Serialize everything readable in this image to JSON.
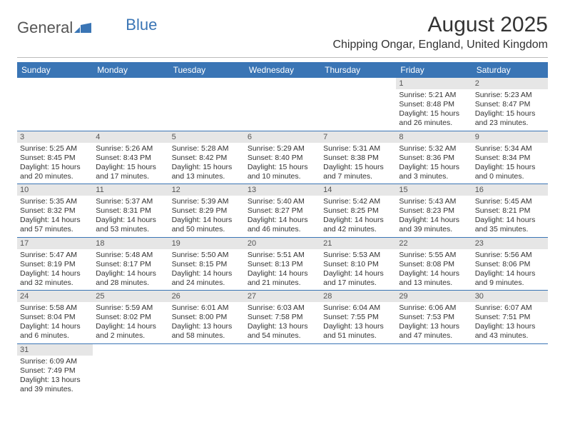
{
  "logo": {
    "general": "General",
    "blue": "Blue"
  },
  "title": "August 2025",
  "subtitle": "Chipping Ongar, England, United Kingdom",
  "dayHeaders": [
    "Sunday",
    "Monday",
    "Tuesday",
    "Wednesday",
    "Thursday",
    "Friday",
    "Saturday"
  ],
  "colors": {
    "headerBg": "#3a75b5",
    "headerText": "#ffffff",
    "dayNumBg": "#e6e6e6",
    "rowBorder": "#3a75b5",
    "text": "#333333"
  },
  "weeks": [
    [
      null,
      null,
      null,
      null,
      null,
      {
        "n": "1",
        "sunrise": "5:21 AM",
        "sunset": "8:48 PM",
        "daylight": "15 hours and 26 minutes."
      },
      {
        "n": "2",
        "sunrise": "5:23 AM",
        "sunset": "8:47 PM",
        "daylight": "15 hours and 23 minutes."
      }
    ],
    [
      {
        "n": "3",
        "sunrise": "5:25 AM",
        "sunset": "8:45 PM",
        "daylight": "15 hours and 20 minutes."
      },
      {
        "n": "4",
        "sunrise": "5:26 AM",
        "sunset": "8:43 PM",
        "daylight": "15 hours and 17 minutes."
      },
      {
        "n": "5",
        "sunrise": "5:28 AM",
        "sunset": "8:42 PM",
        "daylight": "15 hours and 13 minutes."
      },
      {
        "n": "6",
        "sunrise": "5:29 AM",
        "sunset": "8:40 PM",
        "daylight": "15 hours and 10 minutes."
      },
      {
        "n": "7",
        "sunrise": "5:31 AM",
        "sunset": "8:38 PM",
        "daylight": "15 hours and 7 minutes."
      },
      {
        "n": "8",
        "sunrise": "5:32 AM",
        "sunset": "8:36 PM",
        "daylight": "15 hours and 3 minutes."
      },
      {
        "n": "9",
        "sunrise": "5:34 AM",
        "sunset": "8:34 PM",
        "daylight": "15 hours and 0 minutes."
      }
    ],
    [
      {
        "n": "10",
        "sunrise": "5:35 AM",
        "sunset": "8:32 PM",
        "daylight": "14 hours and 57 minutes."
      },
      {
        "n": "11",
        "sunrise": "5:37 AM",
        "sunset": "8:31 PM",
        "daylight": "14 hours and 53 minutes."
      },
      {
        "n": "12",
        "sunrise": "5:39 AM",
        "sunset": "8:29 PM",
        "daylight": "14 hours and 50 minutes."
      },
      {
        "n": "13",
        "sunrise": "5:40 AM",
        "sunset": "8:27 PM",
        "daylight": "14 hours and 46 minutes."
      },
      {
        "n": "14",
        "sunrise": "5:42 AM",
        "sunset": "8:25 PM",
        "daylight": "14 hours and 42 minutes."
      },
      {
        "n": "15",
        "sunrise": "5:43 AM",
        "sunset": "8:23 PM",
        "daylight": "14 hours and 39 minutes."
      },
      {
        "n": "16",
        "sunrise": "5:45 AM",
        "sunset": "8:21 PM",
        "daylight": "14 hours and 35 minutes."
      }
    ],
    [
      {
        "n": "17",
        "sunrise": "5:47 AM",
        "sunset": "8:19 PM",
        "daylight": "14 hours and 32 minutes."
      },
      {
        "n": "18",
        "sunrise": "5:48 AM",
        "sunset": "8:17 PM",
        "daylight": "14 hours and 28 minutes."
      },
      {
        "n": "19",
        "sunrise": "5:50 AM",
        "sunset": "8:15 PM",
        "daylight": "14 hours and 24 minutes."
      },
      {
        "n": "20",
        "sunrise": "5:51 AM",
        "sunset": "8:13 PM",
        "daylight": "14 hours and 21 minutes."
      },
      {
        "n": "21",
        "sunrise": "5:53 AM",
        "sunset": "8:10 PM",
        "daylight": "14 hours and 17 minutes."
      },
      {
        "n": "22",
        "sunrise": "5:55 AM",
        "sunset": "8:08 PM",
        "daylight": "14 hours and 13 minutes."
      },
      {
        "n": "23",
        "sunrise": "5:56 AM",
        "sunset": "8:06 PM",
        "daylight": "14 hours and 9 minutes."
      }
    ],
    [
      {
        "n": "24",
        "sunrise": "5:58 AM",
        "sunset": "8:04 PM",
        "daylight": "14 hours and 6 minutes."
      },
      {
        "n": "25",
        "sunrise": "5:59 AM",
        "sunset": "8:02 PM",
        "daylight": "14 hours and 2 minutes."
      },
      {
        "n": "26",
        "sunrise": "6:01 AM",
        "sunset": "8:00 PM",
        "daylight": "13 hours and 58 minutes."
      },
      {
        "n": "27",
        "sunrise": "6:03 AM",
        "sunset": "7:58 PM",
        "daylight": "13 hours and 54 minutes."
      },
      {
        "n": "28",
        "sunrise": "6:04 AM",
        "sunset": "7:55 PM",
        "daylight": "13 hours and 51 minutes."
      },
      {
        "n": "29",
        "sunrise": "6:06 AM",
        "sunset": "7:53 PM",
        "daylight": "13 hours and 47 minutes."
      },
      {
        "n": "30",
        "sunrise": "6:07 AM",
        "sunset": "7:51 PM",
        "daylight": "13 hours and 43 minutes."
      }
    ],
    [
      {
        "n": "31",
        "sunrise": "6:09 AM",
        "sunset": "7:49 PM",
        "daylight": "13 hours and 39 minutes."
      },
      null,
      null,
      null,
      null,
      null,
      null
    ]
  ],
  "labels": {
    "sunrise": "Sunrise: ",
    "sunset": "Sunset: ",
    "daylight": "Daylight: "
  }
}
